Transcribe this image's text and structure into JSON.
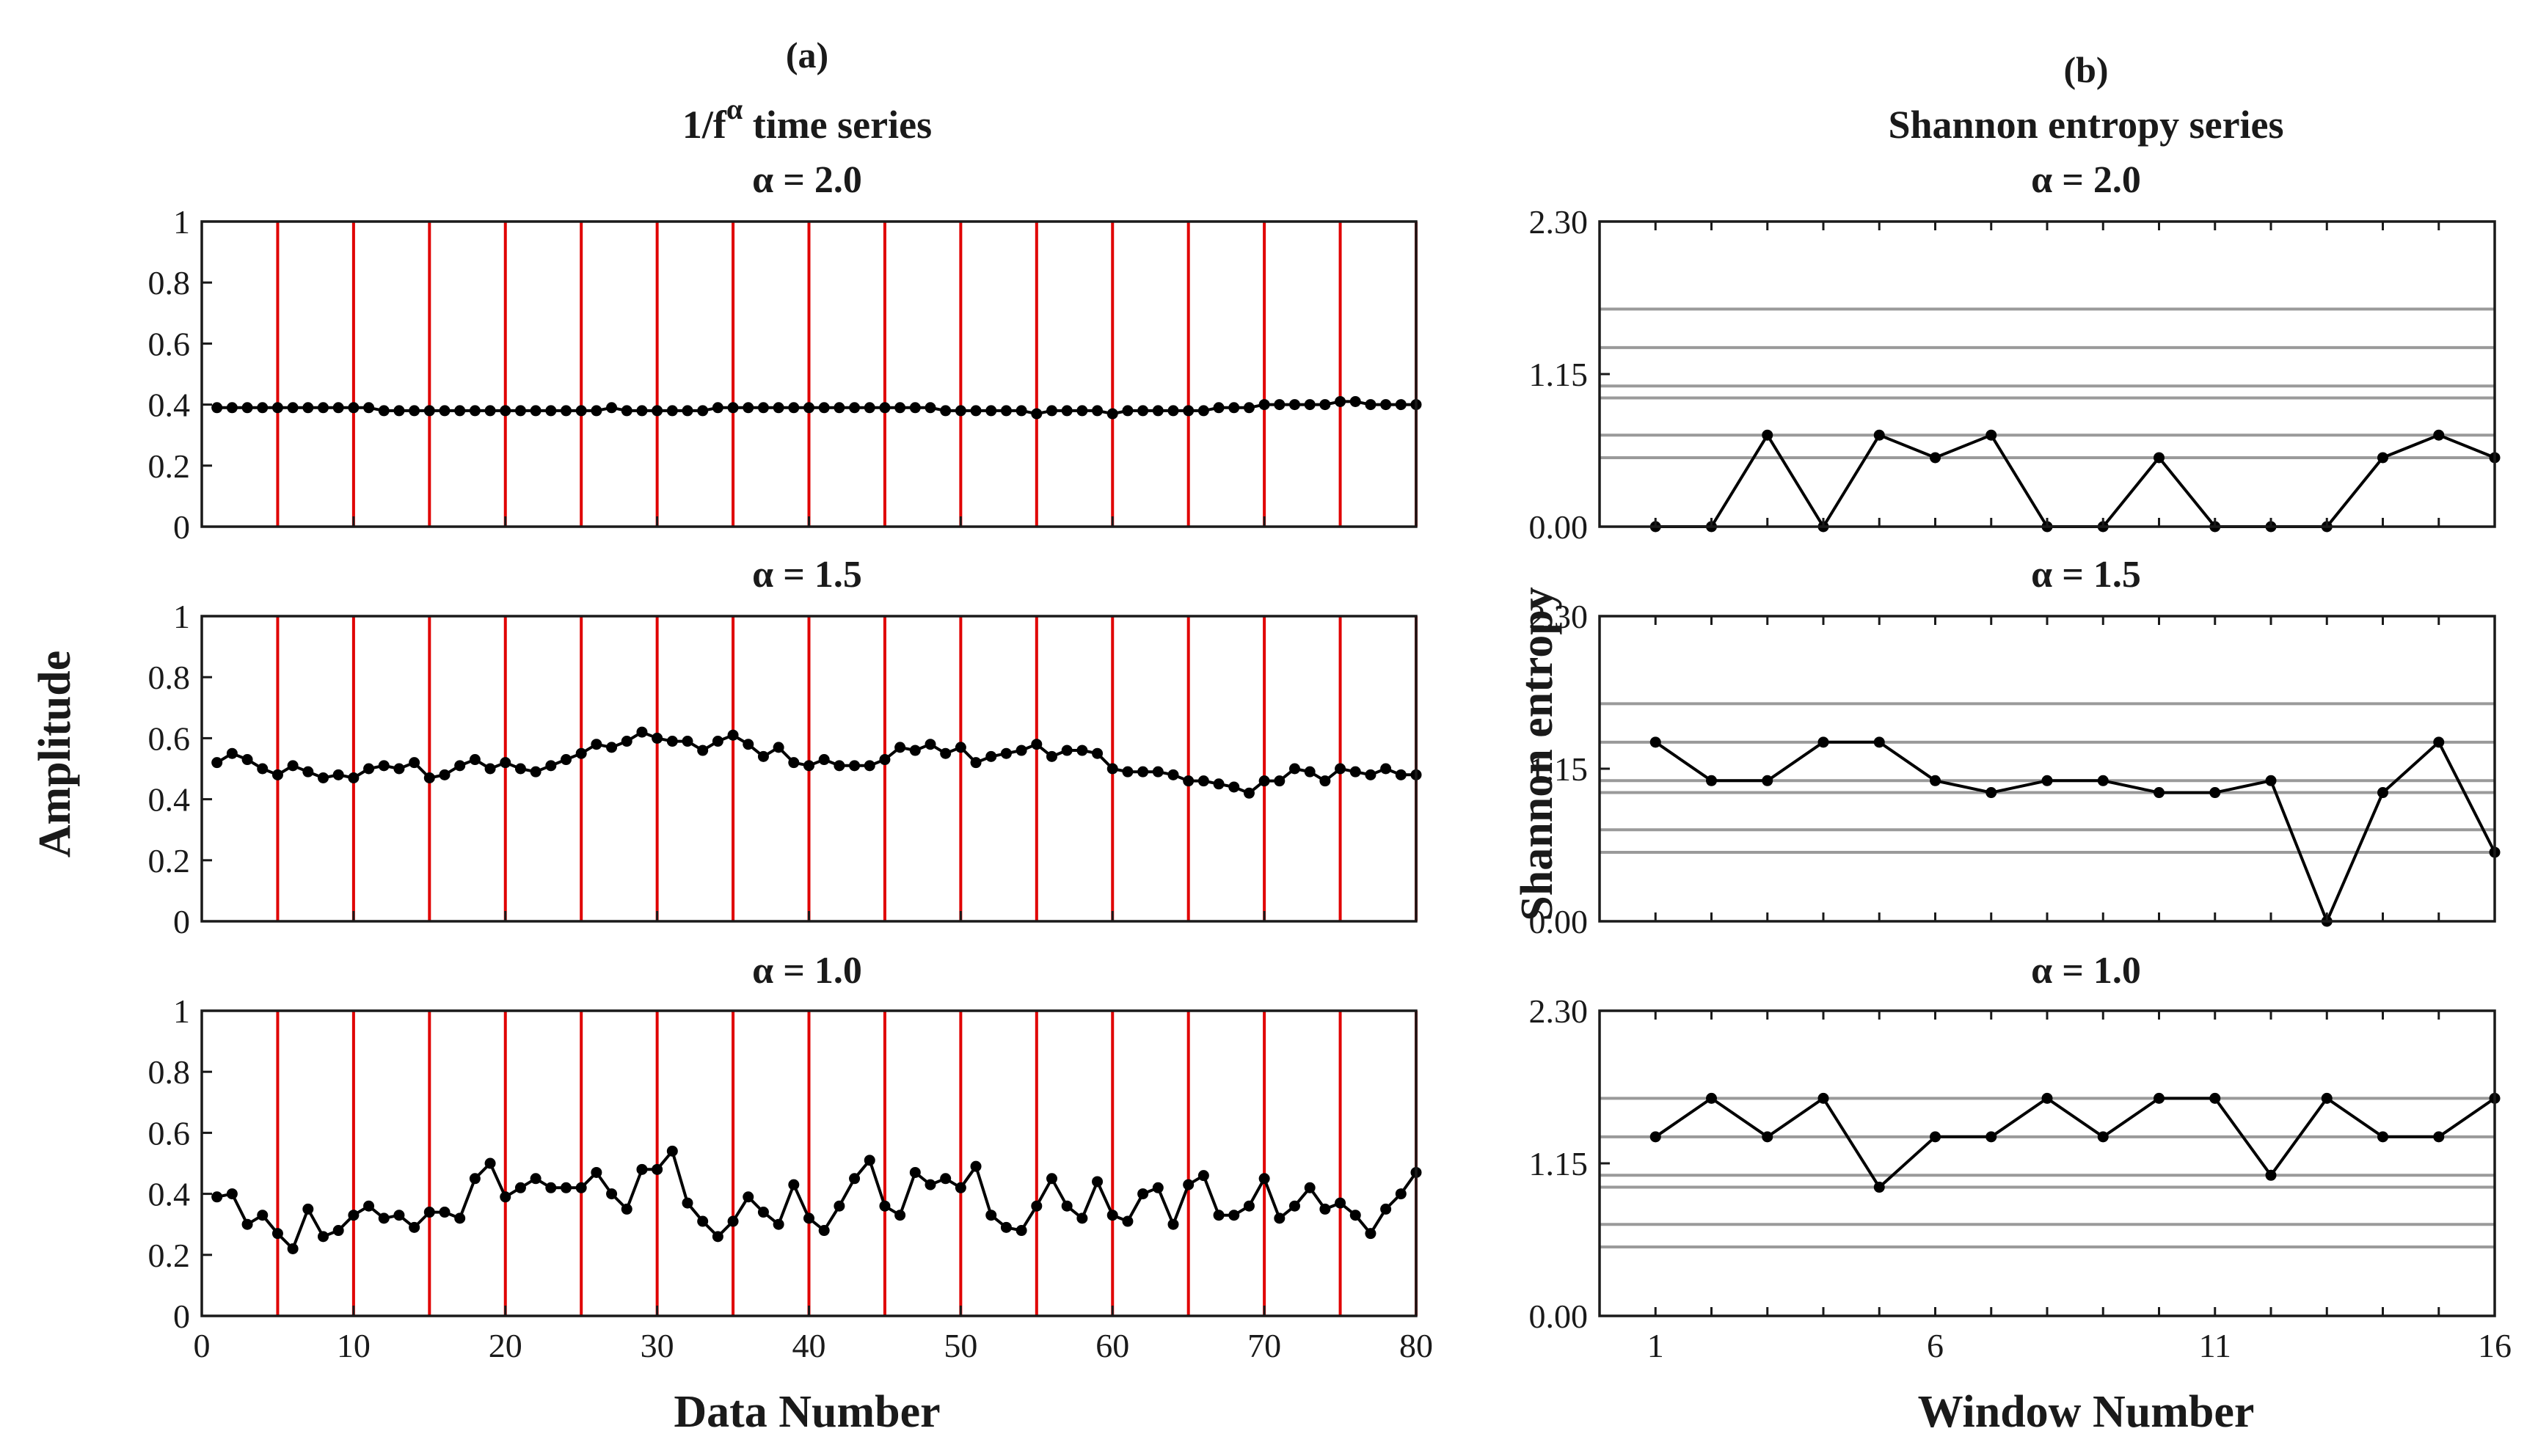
{
  "chart_data": [
    {
      "id": "time-series",
      "type": "line",
      "panel_tag": "(a)",
      "title_main": "1/f",
      "title_sup": "α",
      "title_rest": " time series",
      "xlabel": "Data Number",
      "ylabel": "Amplitude",
      "xlim": [
        0,
        80
      ],
      "ylim": [
        0,
        1
      ],
      "xticks": [
        "0",
        "10",
        "20",
        "30",
        "40",
        "50",
        "60",
        "70",
        "80"
      ],
      "xtick_values": [
        0,
        10,
        20,
        30,
        40,
        50,
        60,
        70,
        80
      ],
      "yticks": [
        "0",
        "0.2",
        "0.4",
        "0.6",
        "0.8",
        "1"
      ],
      "ytick_values": [
        0,
        0.2,
        0.4,
        0.6,
        0.8,
        1
      ],
      "window_boundaries": [
        5,
        10,
        15,
        20,
        25,
        30,
        35,
        40,
        45,
        50,
        55,
        60,
        65,
        70,
        75,
        80
      ],
      "divider_color": "#e00000",
      "series_color": "#000000",
      "series": [
        {
          "name": "α = 2.0",
          "x": [
            1,
            2,
            3,
            4,
            5,
            6,
            7,
            8,
            9,
            10,
            11,
            12,
            13,
            14,
            15,
            16,
            17,
            18,
            19,
            20,
            21,
            22,
            23,
            24,
            25,
            26,
            27,
            28,
            29,
            30,
            31,
            32,
            33,
            34,
            35,
            36,
            37,
            38,
            39,
            40,
            41,
            42,
            43,
            44,
            45,
            46,
            47,
            48,
            49,
            50,
            51,
            52,
            53,
            54,
            55,
            56,
            57,
            58,
            59,
            60,
            61,
            62,
            63,
            64,
            65,
            66,
            67,
            68,
            69,
            70,
            71,
            72,
            73,
            74,
            75,
            76,
            77,
            78,
            79,
            80
          ],
          "values": [
            0.39,
            0.39,
            0.39,
            0.39,
            0.39,
            0.39,
            0.39,
            0.39,
            0.39,
            0.39,
            0.39,
            0.38,
            0.38,
            0.38,
            0.38,
            0.38,
            0.38,
            0.38,
            0.38,
            0.38,
            0.38,
            0.38,
            0.38,
            0.38,
            0.38,
            0.38,
            0.39,
            0.38,
            0.38,
            0.38,
            0.38,
            0.38,
            0.38,
            0.39,
            0.39,
            0.39,
            0.39,
            0.39,
            0.39,
            0.39,
            0.39,
            0.39,
            0.39,
            0.39,
            0.39,
            0.39,
            0.39,
            0.39,
            0.38,
            0.38,
            0.38,
            0.38,
            0.38,
            0.38,
            0.37,
            0.38,
            0.38,
            0.38,
            0.38,
            0.37,
            0.38,
            0.38,
            0.38,
            0.38,
            0.38,
            0.38,
            0.39,
            0.39,
            0.39,
            0.4,
            0.4,
            0.4,
            0.4,
            0.4,
            0.41,
            0.41,
            0.4,
            0.4,
            0.4,
            0.4
          ]
        },
        {
          "name": "α = 1.5",
          "x": [
            1,
            2,
            3,
            4,
            5,
            6,
            7,
            8,
            9,
            10,
            11,
            12,
            13,
            14,
            15,
            16,
            17,
            18,
            19,
            20,
            21,
            22,
            23,
            24,
            25,
            26,
            27,
            28,
            29,
            30,
            31,
            32,
            33,
            34,
            35,
            36,
            37,
            38,
            39,
            40,
            41,
            42,
            43,
            44,
            45,
            46,
            47,
            48,
            49,
            50,
            51,
            52,
            53,
            54,
            55,
            56,
            57,
            58,
            59,
            60,
            61,
            62,
            63,
            64,
            65,
            66,
            67,
            68,
            69,
            70,
            71,
            72,
            73,
            74,
            75,
            76,
            77,
            78,
            79,
            80
          ],
          "values": [
            0.52,
            0.55,
            0.53,
            0.5,
            0.48,
            0.51,
            0.49,
            0.47,
            0.48,
            0.47,
            0.5,
            0.51,
            0.5,
            0.52,
            0.47,
            0.48,
            0.51,
            0.53,
            0.5,
            0.52,
            0.5,
            0.49,
            0.51,
            0.53,
            0.55,
            0.58,
            0.57,
            0.59,
            0.62,
            0.6,
            0.59,
            0.59,
            0.56,
            0.59,
            0.61,
            0.58,
            0.54,
            0.57,
            0.52,
            0.51,
            0.53,
            0.51,
            0.51,
            0.51,
            0.53,
            0.57,
            0.56,
            0.58,
            0.55,
            0.57,
            0.52,
            0.54,
            0.55,
            0.56,
            0.58,
            0.54,
            0.56,
            0.56,
            0.55,
            0.5,
            0.49,
            0.49,
            0.49,
            0.48,
            0.46,
            0.46,
            0.45,
            0.44,
            0.42,
            0.46,
            0.46,
            0.5,
            0.49,
            0.46,
            0.5,
            0.49,
            0.48,
            0.5,
            0.48,
            0.48
          ]
        },
        {
          "name": "α = 1.0",
          "x": [
            1,
            2,
            3,
            4,
            5,
            6,
            7,
            8,
            9,
            10,
            11,
            12,
            13,
            14,
            15,
            16,
            17,
            18,
            19,
            20,
            21,
            22,
            23,
            24,
            25,
            26,
            27,
            28,
            29,
            30,
            31,
            32,
            33,
            34,
            35,
            36,
            37,
            38,
            39,
            40,
            41,
            42,
            43,
            44,
            45,
            46,
            47,
            48,
            49,
            50,
            51,
            52,
            53,
            54,
            55,
            56,
            57,
            58,
            59,
            60,
            61,
            62,
            63,
            64,
            65,
            66,
            67,
            68,
            69,
            70,
            71,
            72,
            73,
            74,
            75,
            76,
            77,
            78,
            79,
            80
          ],
          "values": [
            0.39,
            0.4,
            0.3,
            0.33,
            0.27,
            0.22,
            0.35,
            0.26,
            0.28,
            0.33,
            0.36,
            0.32,
            0.33,
            0.29,
            0.34,
            0.34,
            0.32,
            0.45,
            0.5,
            0.39,
            0.42,
            0.45,
            0.42,
            0.42,
            0.42,
            0.47,
            0.4,
            0.35,
            0.48,
            0.48,
            0.54,
            0.37,
            0.31,
            0.26,
            0.31,
            0.39,
            0.34,
            0.3,
            0.43,
            0.32,
            0.28,
            0.36,
            0.45,
            0.51,
            0.36,
            0.33,
            0.47,
            0.43,
            0.45,
            0.42,
            0.49,
            0.33,
            0.29,
            0.28,
            0.36,
            0.45,
            0.36,
            0.32,
            0.44,
            0.33,
            0.31,
            0.4,
            0.42,
            0.3,
            0.43,
            0.46,
            0.33,
            0.33,
            0.36,
            0.45,
            0.32,
            0.36,
            0.42,
            0.35,
            0.37,
            0.33,
            0.27,
            0.35,
            0.4,
            0.47
          ]
        }
      ]
    },
    {
      "id": "entropy-series",
      "type": "line",
      "panel_tag": "(b)",
      "title": "Shannon entropy series",
      "xlabel": "Window Number",
      "ylabel": "Shannon entropy",
      "xlim": [
        0,
        16
      ],
      "ylim": [
        0,
        2.3
      ],
      "xticks": [
        "1",
        "6",
        "11",
        "16"
      ],
      "xtick_values": [
        1,
        6,
        11,
        16
      ],
      "minor_xtick_values": [
        1,
        2,
        3,
        4,
        5,
        6,
        7,
        8,
        9,
        10,
        11,
        12,
        13,
        14,
        15,
        16
      ],
      "yticks": [
        "0.00",
        "1.15",
        "2.30"
      ],
      "ytick_values": [
        0,
        1.15,
        2.3
      ],
      "level_color": "#9a9a9a",
      "series_color": "#000000",
      "series": [
        {
          "name": "α = 2.0",
          "x": [
            1,
            2,
            3,
            4,
            5,
            6,
            7,
            8,
            9,
            10,
            11,
            12,
            13,
            14,
            15,
            16
          ],
          "values": [
            0.0,
            0.0,
            0.69,
            0.0,
            0.69,
            0.52,
            0.69,
            0.0,
            0.0,
            0.52,
            0.0,
            0.0,
            0.0,
            0.52,
            0.69,
            0.52
          ],
          "levels": [
            0.52,
            0.69,
            0.97,
            1.06,
            1.35,
            1.64
          ]
        },
        {
          "name": "α = 1.5",
          "x": [
            1,
            2,
            3,
            4,
            5,
            6,
            7,
            8,
            9,
            10,
            11,
            12,
            13,
            14,
            15,
            16
          ],
          "values": [
            1.35,
            1.06,
            1.06,
            1.35,
            1.35,
            1.06,
            0.97,
            1.06,
            1.06,
            0.97,
            0.97,
            1.06,
            0.0,
            0.97,
            1.35,
            0.52
          ],
          "levels": [
            0.52,
            0.69,
            0.97,
            1.06,
            1.35,
            1.64
          ]
        },
        {
          "name": "α = 1.0",
          "x": [
            1,
            2,
            3,
            4,
            5,
            6,
            7,
            8,
            9,
            10,
            11,
            12,
            13,
            14,
            15,
            16
          ],
          "values": [
            1.35,
            1.64,
            1.35,
            1.64,
            0.97,
            1.35,
            1.35,
            1.64,
            1.35,
            1.64,
            1.64,
            1.06,
            1.64,
            1.35,
            1.35,
            1.64
          ],
          "levels": [
            0.52,
            0.69,
            0.97,
            1.06,
            1.35,
            1.64
          ]
        }
      ]
    }
  ]
}
